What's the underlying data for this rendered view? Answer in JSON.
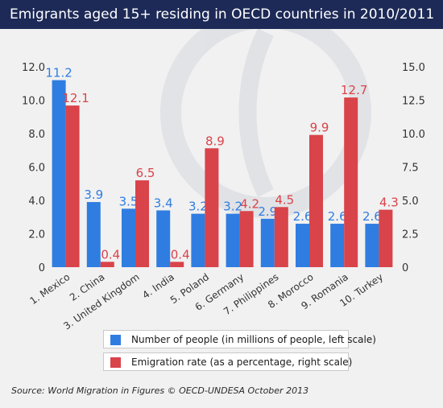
{
  "header": {
    "title": "Emigrants aged 15+ residing in OECD countries in 2010/2011"
  },
  "legend": {
    "series1_label": "Number of people (in millions of people, left scale)",
    "series2_label": "Emigration rate (as a percentage, right scale)"
  },
  "source": "Source: World Migration in Figures © OECD-UNDESA October 2013",
  "colors": {
    "header_bg": "#1d2a57",
    "series1": "#2f7de1",
    "series2": "#d9434a",
    "background": "#f1f1f1"
  },
  "chart_data": {
    "type": "bar",
    "categories": [
      "1. Mexico",
      "2. China",
      "3. United Kingdom",
      "4. India",
      "5. Poland",
      "6. Germany",
      "7. Philippines",
      "8. Morocco",
      "9. Romania",
      "10. Turkey"
    ],
    "series": [
      {
        "name": "Number of people (in millions of people, left scale)",
        "axis": "left",
        "values": [
          11.2,
          3.9,
          3.5,
          3.4,
          3.2,
          3.2,
          2.9,
          2.6,
          2.6,
          2.6
        ],
        "labels": [
          "11.2",
          "3.9",
          "3.5",
          "3.4",
          "3.2",
          "3.2",
          "2.9",
          "2.6",
          "2.6",
          "2.6"
        ]
      },
      {
        "name": "Emigration rate (as a percentage, right scale)",
        "axis": "right",
        "values": [
          12.1,
          0.4,
          6.5,
          0.4,
          8.9,
          4.2,
          4.5,
          9.9,
          12.7,
          4.3
        ],
        "labels": [
          "12.1",
          "0.4",
          "6.5",
          "0.4",
          "8.9",
          "4.2",
          "4.5",
          "9.9",
          "12.7",
          "4.3"
        ]
      }
    ],
    "y_left": {
      "ylim": [
        0,
        12
      ],
      "ticks": [
        "0",
        "2.0",
        "4.0",
        "6.0",
        "8.0",
        "10.0",
        "12.0"
      ]
    },
    "y_right": {
      "ylim": [
        0,
        15
      ],
      "ticks": [
        "0",
        "2.5",
        "5.0",
        "7.5",
        "10.0",
        "12.5",
        "15.0"
      ]
    },
    "grid": false,
    "legend_position": "bottom"
  }
}
